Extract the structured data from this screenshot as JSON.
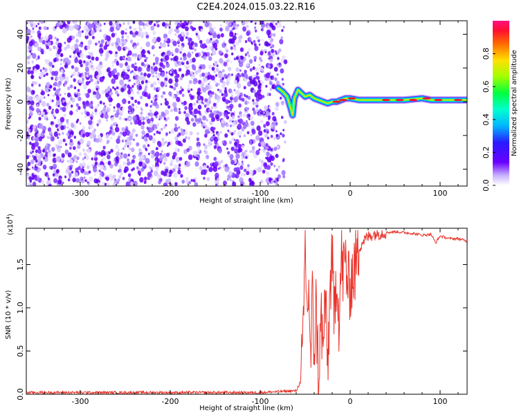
{
  "title": "C2E4.2024.015.03.22.R16",
  "colors": {
    "snr_line": "#e8332a",
    "spectrogram_low": "#6a00ff",
    "spectrogram_mid": "#00ff60",
    "spectrogram_high": "#ff1030"
  },
  "chart_data": [
    {
      "type": "heatmap",
      "name": "spectrogram",
      "xlabel": "Height of straight line (km)",
      "ylabel": "Frequency (Hz)",
      "xlim": [
        -360,
        130
      ],
      "ylim": [
        -50,
        48
      ],
      "x_ticks": [
        -300,
        -200,
        -100,
        0,
        100
      ],
      "x_tick_labels": [
        "-300",
        "-200",
        "-100",
        "0",
        "100"
      ],
      "y_ticks": [
        -40,
        -20,
        0,
        20,
        40
      ],
      "y_tick_labels": [
        "-40",
        "-20",
        "0",
        "20",
        "40"
      ],
      "noise_region_x": [
        -360,
        -80
      ],
      "signal_trace": {
        "x": [
          -80,
          -75,
          -70,
          -66,
          -64,
          -62,
          -58,
          -54,
          -50,
          -45,
          -40,
          -35,
          -30,
          -25,
          -20,
          -15,
          -10,
          -5,
          0,
          10,
          30,
          60,
          80,
          90,
          100,
          130
        ],
        "y": [
          8,
          6,
          3,
          -4,
          -8,
          2,
          7,
          5,
          3,
          4,
          2,
          1,
          0,
          -1,
          0,
          0,
          1,
          2,
          2,
          1,
          1,
          1,
          2,
          1,
          1,
          1
        ]
      },
      "colorbar": {
        "label": "Normalized spectral amplitude",
        "range": [
          0.0,
          1.0
        ],
        "ticks": [
          0.0,
          0.2,
          0.4,
          0.6,
          0.8
        ],
        "tick_labels": [
          "0.0",
          "0.2",
          "0.4",
          "0.6",
          "0.8"
        ]
      }
    },
    {
      "type": "line",
      "name": "snr",
      "xlabel": "Height of straight line (km)",
      "ylabel": "SNR (10 * v/v)",
      "scale_label": "(x10",
      "scale_exponent": "4",
      "scale_close": ")",
      "xlim": [
        -360,
        130
      ],
      "ylim": [
        0,
        1.92
      ],
      "x_ticks": [
        -300,
        -200,
        -100,
        0,
        100
      ],
      "x_tick_labels": [
        "-300",
        "-200",
        "-100",
        "0",
        "100"
      ],
      "y_ticks": [
        0.0,
        0.5,
        1.0,
        1.5
      ],
      "y_tick_labels": [
        "0.0",
        "0.5",
        "1.0",
        "1.5"
      ],
      "series": [
        {
          "name": "SNR",
          "x": [
            -360,
            -100,
            -60,
            -55,
            -52,
            -50,
            -48,
            -46,
            -44,
            -42,
            -40,
            -38,
            -35,
            -32,
            -30,
            -28,
            -25,
            -22,
            -20,
            -18,
            -15,
            -12,
            -10,
            -8,
            -5,
            -2,
            0,
            5,
            10,
            15,
            20,
            25,
            30,
            40,
            50,
            60,
            70,
            80,
            90,
            95,
            100,
            110,
            120,
            130
          ],
          "y": [
            0.02,
            0.02,
            0.04,
            0.15,
            0.6,
            1.8,
            0.9,
            1.3,
            0.3,
            1.1,
            0.5,
            1.0,
            0.2,
            0.9,
            0.4,
            1.2,
            0.3,
            1.3,
            1.6,
            0.8,
            1.5,
            0.8,
            1.6,
            1.4,
            1.55,
            1.2,
            1.3,
            1.45,
            1.7,
            1.78,
            1.82,
            1.85,
            1.86,
            1.87,
            1.88,
            1.87,
            1.86,
            1.84,
            1.85,
            1.75,
            1.83,
            1.8,
            1.8,
            1.77
          ]
        }
      ]
    }
  ]
}
